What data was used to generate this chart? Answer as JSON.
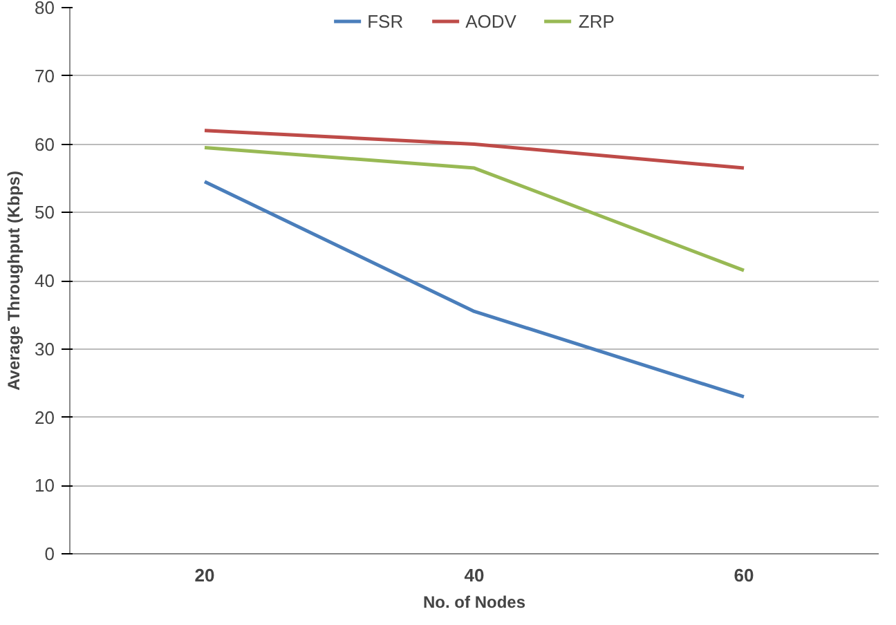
{
  "chart_data": {
    "type": "line",
    "xlabel": "No. of Nodes",
    "ylabel": "Average Throughput (Kbps)",
    "categories": [
      "20",
      "40",
      "60"
    ],
    "series": [
      {
        "name": "FSR",
        "color": "#4a7ebb",
        "values": [
          54.5,
          35.5,
          23
        ]
      },
      {
        "name": "AODV",
        "color": "#be4b48",
        "values": [
          62,
          60,
          56.5
        ]
      },
      {
        "name": "ZRP",
        "color": "#98b954",
        "values": [
          59.5,
          56.5,
          41.5
        ]
      }
    ],
    "ylim": [
      0,
      80
    ],
    "yticks": [
      0,
      10,
      20,
      30,
      40,
      50,
      60,
      70,
      80
    ],
    "grid": "y",
    "legend": "top",
    "marker": "none",
    "line_style": "solid"
  }
}
